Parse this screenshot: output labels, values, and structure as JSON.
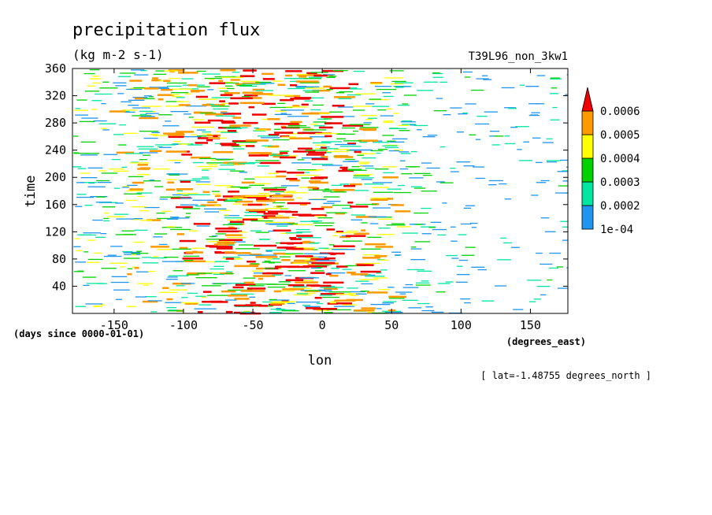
{
  "chart_data": {
    "type": "heatmap",
    "title": "precipitation flux",
    "units": "(kg m-2 s-1)",
    "run_label": "T39L96_non_3kw1",
    "xlabel": "lon",
    "x_units": "(degrees_east)",
    "ylabel": "time",
    "y_units": "(days since 0000-01-01)",
    "subset_note": "[ lat=-1.48755 degrees_north ]",
    "xlim": [
      -180,
      177
    ],
    "ylim": [
      0,
      360
    ],
    "x_ticks": [
      -150,
      -100,
      -50,
      0,
      50,
      100,
      150
    ],
    "y_ticks": [
      40,
      80,
      120,
      160,
      200,
      240,
      280,
      320,
      360
    ],
    "x_tick_labels": [
      "-150",
      "-100",
      "-50",
      "0",
      "50",
      "100",
      "150"
    ],
    "y_tick_labels": [
      "40",
      "80",
      "120",
      "160",
      "200",
      "240",
      "280",
      "320",
      "360"
    ],
    "colorbar": {
      "levels": [
        0.0001,
        0.0002,
        0.0003,
        0.0004,
        0.0005,
        0.0006
      ],
      "labels": [
        "1e-04",
        "0.0002",
        "0.0003",
        "0.0004",
        "0.0005",
        "0.0006"
      ],
      "colors": [
        "#1e96f0",
        "#00e6a0",
        "#00d200",
        "#ffff00",
        "#ff9900",
        "#ee0000"
      ],
      "extend": "max"
    },
    "field_profile": {
      "description_lon": [
        -180,
        -150,
        -100,
        -75,
        -50,
        -25,
        0,
        25,
        50,
        75,
        100,
        150,
        177
      ],
      "relative_intensity": [
        0.35,
        0.45,
        0.7,
        0.85,
        0.9,
        0.9,
        0.8,
        0.65,
        0.45,
        0.2,
        0.12,
        0.12,
        0.18
      ]
    }
  }
}
